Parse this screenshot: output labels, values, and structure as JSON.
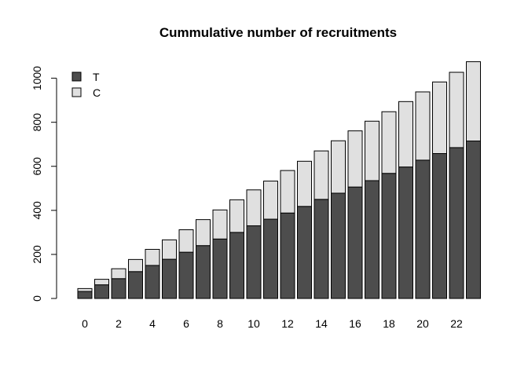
{
  "chart_data": {
    "type": "bar",
    "stacked": true,
    "title": "Cummulative number of recruitments",
    "xlabel": "",
    "ylabel": "",
    "categories": [
      "0",
      "1",
      "2",
      "3",
      "4",
      "5",
      "6",
      "7",
      "8",
      "9",
      "10",
      "11",
      "12",
      "13",
      "14",
      "15",
      "16",
      "17",
      "18",
      "19",
      "20",
      "21",
      "22",
      "23"
    ],
    "x_tick_labels": [
      "0",
      "2",
      "4",
      "6",
      "8",
      "10",
      "12",
      "14",
      "16",
      "18",
      "20",
      "22"
    ],
    "y_ticks": [
      0,
      200,
      400,
      600,
      800,
      1000
    ],
    "y_tick_labels": [
      "0",
      "200",
      "400",
      "600",
      "800",
      "1000"
    ],
    "ylim": [
      0,
      1080
    ],
    "series": [
      {
        "name": "T",
        "color": "#4d4d4d",
        "values": [
          32,
          62,
          90,
          122,
          150,
          178,
          210,
          240,
          270,
          300,
          330,
          360,
          388,
          418,
          450,
          478,
          506,
          535,
          568,
          597,
          628,
          658,
          685,
          715
        ]
      },
      {
        "name": "C",
        "color": "#e0e0e0",
        "values": [
          13,
          25,
          45,
          55,
          73,
          88,
          102,
          118,
          132,
          148,
          163,
          173,
          193,
          205,
          220,
          238,
          255,
          270,
          280,
          297,
          310,
          325,
          342,
          360
        ]
      }
    ],
    "legend": {
      "position": "top-left",
      "entries": [
        {
          "label": "T",
          "color": "#4d4d4d"
        },
        {
          "label": "C",
          "color": "#e0e0e0"
        }
      ]
    }
  }
}
